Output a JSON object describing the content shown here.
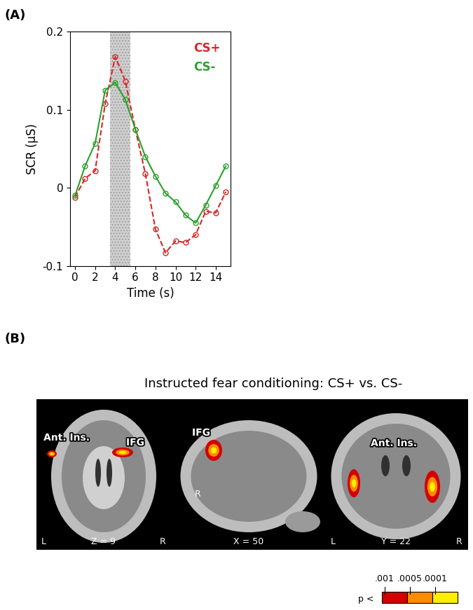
{
  "panel_labels": [
    "(A)",
    "(B)"
  ],
  "chart_data": {
    "type": "line",
    "x": [
      0,
      1,
      2,
      3,
      4,
      5,
      6,
      7,
      8,
      9,
      10,
      11,
      12,
      13,
      14,
      15
    ],
    "series": [
      {
        "name": "CS+",
        "color": "#d62728",
        "line_style": "dashed",
        "marker": "o",
        "values": [
          -0.012,
          0.012,
          0.022,
          0.108,
          0.168,
          0.137,
          0.075,
          0.018,
          -0.053,
          -0.083,
          -0.068,
          -0.07,
          -0.06,
          -0.03,
          -0.032,
          -0.005
        ]
      },
      {
        "name": "CS-",
        "color": "#2ca02c",
        "line_style": "solid",
        "marker": "o",
        "values": [
          -0.01,
          0.028,
          0.057,
          0.125,
          0.135,
          0.113,
          0.075,
          0.04,
          0.015,
          -0.007,
          -0.018,
          -0.035,
          -0.045,
          -0.022,
          0.003,
          0.028
        ]
      }
    ],
    "shaded_interval": [
      3.5,
      5.5
    ],
    "x_label": "Time (s)",
    "y_label": "SCR (µS)",
    "xlim": [
      -0.5,
      15.5
    ],
    "xticks": [
      0,
      2,
      4,
      6,
      8,
      10,
      12,
      14
    ],
    "ylim": [
      -0.1,
      0.2
    ],
    "yticks": [
      -0.1,
      0,
      0.1,
      0.2
    ],
    "grid": false,
    "legend": "upper right"
  },
  "figure_b": {
    "title": "Instructed fear conditioning: CS+ vs. CS-",
    "slices": [
      {
        "labels": [
          "Ant. Ins.",
          "IFG"
        ],
        "coordinate": "Z = 9",
        "sides": [
          "L",
          "R"
        ]
      },
      {
        "labels": [
          "IFG"
        ],
        "coordinate": "X = 50",
        "sides": [
          "R"
        ]
      },
      {
        "labels": [
          "Ant. Ins."
        ],
        "coordinate": "Y = 22",
        "sides": [
          "L",
          "R"
        ]
      }
    ],
    "colorbar": {
      "prefix": "p <",
      "tick_labels": [
        ".001",
        ".0005",
        ".0001"
      ]
    }
  }
}
